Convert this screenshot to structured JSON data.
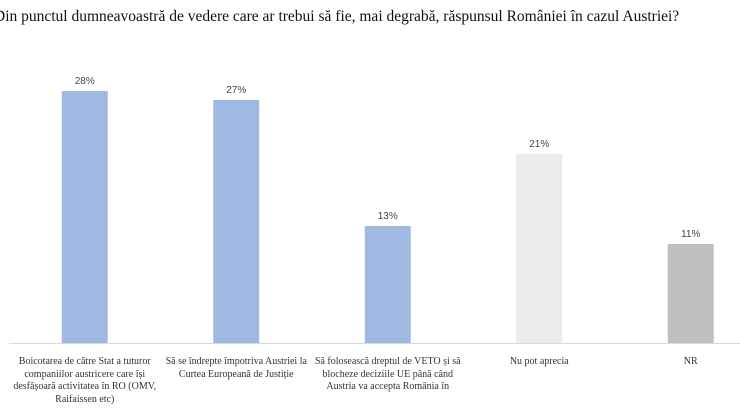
{
  "chart_data": {
    "type": "bar",
    "title": "Din punctul dumneavoastră de vedere care ar trebui să fie, mai degrabă, răspunsul României în cazul Austriei?",
    "categories": [
      "Boicotarea de către Stat a tuturor companiilor austricere care își desfășoară activitatea în RO (OMV, Raifaissen etc)",
      "Să se îndrepte împotriva Austriei la Curtea Europeană de Justiție",
      "Să folosească dreptul de VETO și să blocheze deciziile UE până când Austria va accepta România în",
      "Nu pot aprecia",
      "NR"
    ],
    "values": [
      28,
      27,
      13,
      21,
      11
    ],
    "value_labels": [
      "28%",
      "27%",
      "13%",
      "21%",
      "11%"
    ],
    "colors": [
      "#9fb9e2",
      "#9fb9e2",
      "#9fb9e2",
      "#ececec",
      "#bfbfbf"
    ]
  }
}
